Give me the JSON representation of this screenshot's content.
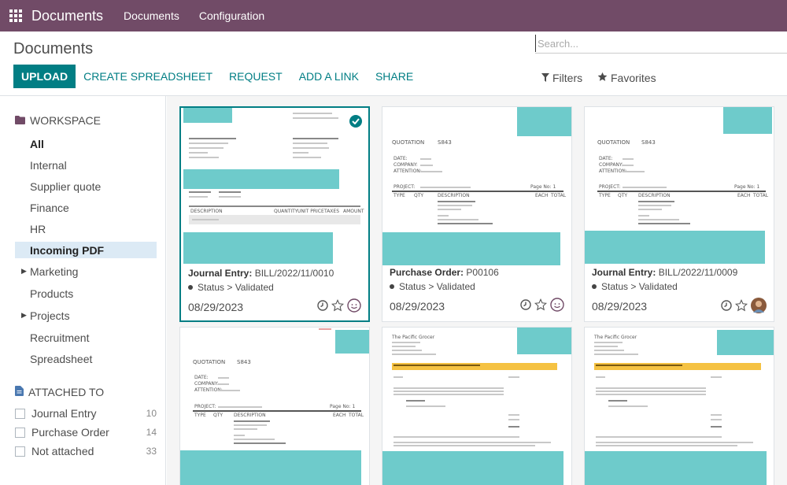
{
  "navbar": {
    "app_name": "Documents",
    "menu": [
      "Documents",
      "Configuration"
    ]
  },
  "control": {
    "breadcrumb": "Documents",
    "search_placeholder": "Search...",
    "buttons": {
      "upload": "UPLOAD",
      "create_spreadsheet": "CREATE SPREADSHEET",
      "request": "REQUEST",
      "add_link": "ADD A LINK",
      "share": "SHARE"
    },
    "filters_label": "Filters",
    "favorites_label": "Favorites"
  },
  "sidebar": {
    "workspace_title": "WORKSPACE",
    "workspaces": [
      {
        "label": "All"
      },
      {
        "label": "Internal"
      },
      {
        "label": "Supplier quote"
      },
      {
        "label": "Finance"
      },
      {
        "label": "HR"
      },
      {
        "label": "Incoming PDF"
      },
      {
        "label": "Marketing"
      },
      {
        "label": "Products"
      },
      {
        "label": "Projects"
      },
      {
        "label": "Recruitment"
      },
      {
        "label": "Spreadsheet"
      }
    ],
    "attached_title": "ATTACHED TO",
    "attached": [
      {
        "label": "Journal Entry",
        "count": "10"
      },
      {
        "label": "Purchase Order",
        "count": "14"
      },
      {
        "label": "Not attached",
        "count": "33"
      }
    ]
  },
  "cards": [
    {
      "type": "Journal Entry:",
      "name": "BILL/2022/11/0010",
      "status": "Status > Validated",
      "date": "08/29/2023"
    },
    {
      "type": "Purchase Order:",
      "name": "P00106",
      "status": "Status > Validated",
      "date": "08/29/2023"
    },
    {
      "type": "Journal Entry:",
      "name": "BILL/2022/11/0009",
      "status": "Status > Validated",
      "date": "08/29/2023"
    }
  ],
  "thumb_text": {
    "quotation": "QUOTATION",
    "number": "S843",
    "date_lbl": "DATE:",
    "company_lbl": "COMPANY:",
    "attention_lbl": "ATTENTION:",
    "project_lbl": "PROJECT:",
    "type_lbl": "TYPE",
    "qty_lbl": "QTY",
    "desc_lbl": "DESCRIPTION",
    "each_lbl": "EACH",
    "total_lbl": "TOTAL",
    "description": "DESCRIPTION",
    "quantity": "QUANTITY",
    "unit_price": "UNIT PRICE",
    "taxes": "TAXES",
    "amount": "AMOUNT",
    "pacific": "The Pacific Grocer",
    "page": "Page No: 1"
  },
  "colors": {
    "navbar": "#714b67",
    "primary": "#017e84",
    "placeholder": "#6ecbcb",
    "selected_bg": "#dceaf5"
  }
}
